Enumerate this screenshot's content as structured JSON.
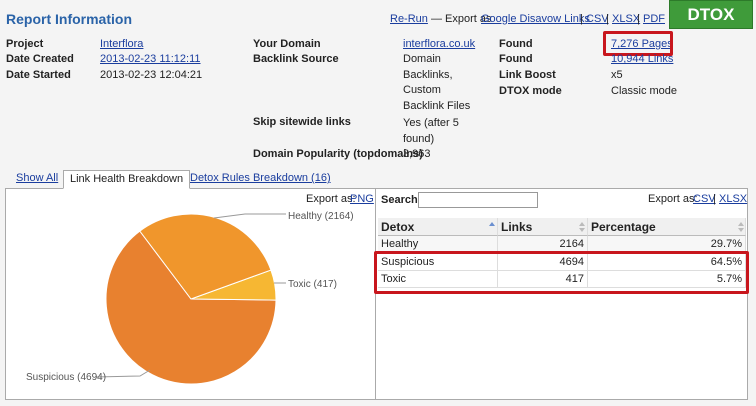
{
  "header": {
    "title": "Report Information",
    "rerun": "Re-Run",
    "export_as": "— Export as",
    "links": [
      "Google Disavow Links",
      "CSV",
      "XLSX",
      "PDF"
    ],
    "separator": "|",
    "badge": "DTOX"
  },
  "info": [
    {
      "label": "Project",
      "value": "Interflora"
    },
    {
      "label": "Date Created",
      "value": "2013-02-23 11:12:11"
    },
    {
      "label": "Date Started",
      "value": "2013-02-23 12:04:21"
    },
    {
      "label": "Your Domain",
      "value": "interflora.co.uk"
    },
    {
      "label": "Backlink Source",
      "value": "Domain Backlinks, Custom Backlink Files"
    },
    {
      "label": "Skip sitewide links",
      "value": "Yes (after 5 found)"
    },
    {
      "label": "Domain Popularity (topdomains)",
      "value": "3,963"
    },
    {
      "label": "Found",
      "value": "7,276 Pages"
    },
    {
      "label": "Found",
      "value": "10,944 Links"
    },
    {
      "label": "Link Boost",
      "value": "x5"
    },
    {
      "label": "DTOX mode",
      "value": "Classic mode"
    }
  ],
  "tabs": [
    "Show All",
    "Link Health Breakdown",
    "Detox Rules Breakdown (16)"
  ],
  "pie": {
    "export_label": "Export as:",
    "export_link": "PNG",
    "labels": [
      "Healthy (2164)",
      "Toxic (417)",
      "Suspicious (4694)"
    ],
    "values": [
      2164,
      417,
      4694
    ],
    "colors": [
      "#f0962c",
      "#f6b733",
      "#e8812f"
    ]
  },
  "table": {
    "search_label": "Search:",
    "export_label": "Export as:",
    "export_links": [
      "CSV",
      "XLSX"
    ],
    "separator": "|",
    "columns": [
      "Detox",
      "Links",
      "Percentage"
    ],
    "rows": [
      [
        "Healthy",
        "2164",
        "29.7%"
      ],
      [
        "Suspicious",
        "4694",
        "64.5%"
      ],
      [
        "Toxic",
        "417",
        "5.7%"
      ]
    ]
  }
}
